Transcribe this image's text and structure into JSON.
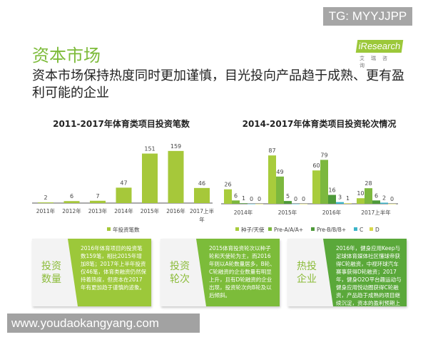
{
  "watermark_top": "TG: MYYJJPP",
  "title": "资本市场",
  "subtitle": "资本市场保持热度同时更加谨慎，目光投向产品趋于成熟、更有盈利可能的企业",
  "logo": {
    "brand": "iResearch",
    "cn": "艾瑞咨询"
  },
  "colors": {
    "chart1": "#a6c83a",
    "series": [
      "#a8cc3c",
      "#7cb83e",
      "#4e9a3a",
      "#3cb4c8",
      "#d8d84a"
    ]
  },
  "chart_data": [
    {
      "type": "bar",
      "title": "2011-2017年体育类项目投资笔数",
      "categories": [
        "2011年",
        "2012年",
        "2013年",
        "2014年",
        "2015年",
        "2016年",
        "2017上半年"
      ],
      "series": [
        {
          "name": "年投资笔数",
          "values": [
            2,
            6,
            7,
            47,
            151,
            159,
            46
          ]
        }
      ],
      "legend": "bottom",
      "grid": false
    },
    {
      "type": "bar",
      "title": "2014-2017年体育类项目投资轮次情况",
      "categories": [
        "2014年",
        "2015年",
        "2016年",
        "2017上半年"
      ],
      "series": [
        {
          "name": "种子/天使",
          "values": [
            26,
            87,
            60,
            10
          ]
        },
        {
          "name": "Pre-A/A/A+",
          "values": [
            6,
            49,
            79,
            28
          ]
        },
        {
          "name": "Pre-B/B/B+",
          "values": [
            1,
            5,
            16,
            6
          ]
        },
        {
          "name": "C",
          "values": [
            0,
            0,
            3,
            2
          ]
        },
        {
          "name": "D",
          "values": [
            0,
            0,
            1,
            0
          ]
        }
      ],
      "legend": "bottom",
      "grid": false
    }
  ],
  "cards": [
    {
      "label": "投资数量",
      "text": "2016年体育项目的投资笔数159笔，相比2015年增加8笔；2017年上半年投资仅46笔，体育类融资仍然保持着热度，但资本在2017年有更加趋于谨慎的迹象。",
      "color": "#9cc83a"
    },
    {
      "label": "投资轮次",
      "text": "2015体育投资轮次以种子轮和天使轮为主，而2016年则以A轮数量居多，B轮、C轮融资的企业数量有明显上升，且有D轮融资的企业出现，投资轮次向B轮及以后倾斜。",
      "color": "#7cbc3a"
    },
    {
      "label": "热投企业",
      "text": "2016年，健身应用Keep与足球体育媒体社区懂球帝获得C轮融资，中视环球汽车赛事获得D轮融资；2017年，健身O2O平台趣运动与健身应用悦动圈获得C轮融资，产品趋于成熟的项目继续沉淀，资本的盈利预期上升。",
      "color": "#5aa83a"
    }
  ],
  "watermark_bottom": "www.youdaokangyang.com"
}
